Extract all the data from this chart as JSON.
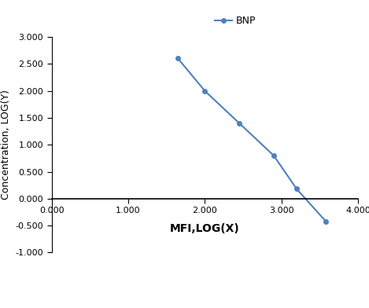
{
  "x": [
    1.65,
    2.0,
    2.45,
    2.9,
    3.2,
    3.58
  ],
  "y": [
    2.6,
    2.0,
    1.4,
    0.8,
    0.18,
    -0.42
  ],
  "line_color": "#4f81bd",
  "marker_color": "#4f81bd",
  "marker_style": "o",
  "marker_size": 4,
  "line_width": 1.5,
  "legend_label": "BNP",
  "xlabel": "MFI,LOG(X)",
  "ylabel": "Concentration, LOG(Y)",
  "xlim": [
    0.0,
    4.0
  ],
  "ylim": [
    -1.0,
    3.0
  ],
  "xticks": [
    0.0,
    1.0,
    2.0,
    3.0,
    4.0
  ],
  "yticks": [
    -1.0,
    -0.5,
    0.0,
    0.5,
    1.0,
    1.5,
    2.0,
    2.5,
    3.0
  ],
  "xlabel_fontsize": 10,
  "ylabel_fontsize": 9,
  "tick_fontsize": 8,
  "legend_fontsize": 9,
  "background_color": "#ffffff",
  "grid": false
}
